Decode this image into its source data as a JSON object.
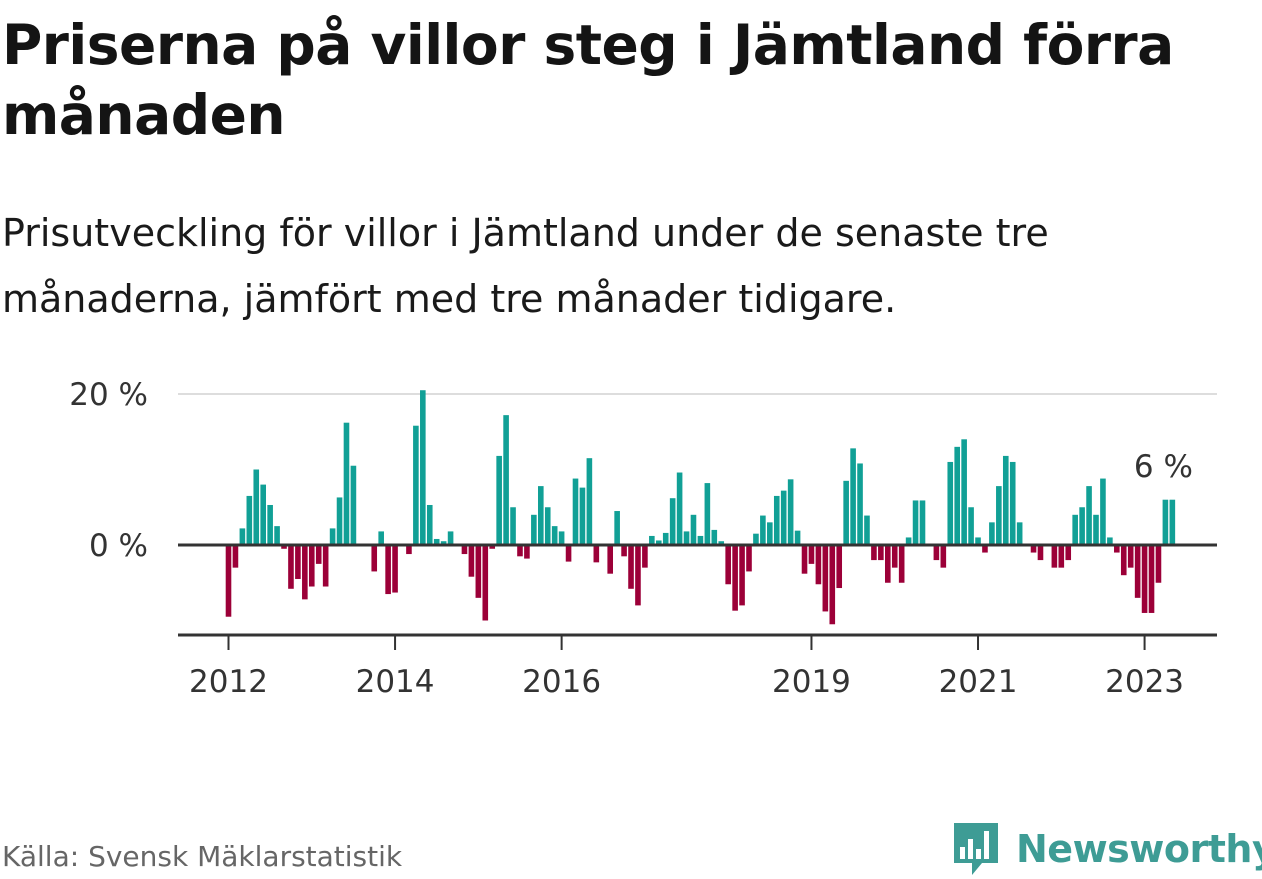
{
  "title": "Priserna på villor steg i Jämtland förra månaden",
  "subtitle": "Prisutveckling för villor i Jämtland under de senaste tre månaderna, jämfört med tre månader tidigare.",
  "source": "Källa: Svensk Mäklarstatistik",
  "brand": {
    "name": "Newsworthy",
    "icon": "newsworthy-logo-icon",
    "color": "#3e9c95"
  },
  "colors": {
    "positive": "#11a096",
    "negative": "#9c0038",
    "grid": "#dddddd",
    "axis": "#333333"
  },
  "chart_data": {
    "type": "bar",
    "title": "Priserna på villor steg i Jämtland förra månaden",
    "subtitle": "Prisutveckling för villor i Jämtland under de senaste tre månaderna, jämfört med tre månader tidigare.",
    "xlabel": "",
    "ylabel": "",
    "y_unit": "%",
    "ylim": [
      -12,
      20
    ],
    "y_ticks": [
      {
        "value": 0,
        "label": "0 %"
      },
      {
        "value": 20,
        "label": "20 %"
      }
    ],
    "x_ticks": [
      {
        "value": "2012-01",
        "label": "2012"
      },
      {
        "value": "2014-01",
        "label": "2014"
      },
      {
        "value": "2016-01",
        "label": "2016"
      },
      {
        "value": "2019-01",
        "label": "2019"
      },
      {
        "value": "2021-01",
        "label": "2021"
      },
      {
        "value": "2023-01",
        "label": "2023"
      }
    ],
    "grid": true,
    "annotation": {
      "text": "6 %",
      "at": "2023-04"
    },
    "x_start": "2012-01",
    "values": [
      -9.5,
      -3.0,
      2.2,
      6.5,
      10.0,
      8.0,
      5.3,
      2.5,
      -0.5,
      -5.8,
      -4.5,
      -7.2,
      -5.5,
      -2.5,
      -5.5,
      2.2,
      6.3,
      16.2,
      10.5,
      0,
      0,
      -3.5,
      1.8,
      -6.5,
      -6.3,
      0,
      -1.2,
      15.8,
      20.5,
      5.3,
      0.8,
      0.5,
      1.8,
      0,
      -1.2,
      -4.2,
      -7.0,
      -10.0,
      -0.5,
      11.8,
      17.2,
      5.0,
      -1.5,
      -1.8,
      4.0,
      7.8,
      5.0,
      2.5,
      1.8,
      -2.2,
      8.8,
      7.6,
      11.5,
      -2.3,
      0,
      -3.8,
      4.5,
      -1.5,
      -5.8,
      -8.0,
      -3.0,
      1.2,
      0.6,
      1.6,
      6.2,
      9.6,
      1.8,
      4.0,
      1.2,
      8.2,
      2.0,
      0.5,
      -5.2,
      -8.7,
      -8.0,
      -3.5,
      1.5,
      3.9,
      3.0,
      6.5,
      7.2,
      8.7,
      1.9,
      -3.8,
      -2.5,
      -5.2,
      -8.8,
      -10.5,
      -5.7,
      8.5,
      12.8,
      10.8,
      3.9,
      -2.0,
      -2.0,
      -5.0,
      -3.0,
      -5.0,
      1.0,
      5.9,
      5.9,
      0,
      -2.0,
      -3.0,
      11.0,
      13.0,
      14.0,
      5.0,
      1.0,
      -1.0,
      3.0,
      7.8,
      11.8,
      11.0,
      3.0,
      0,
      -1.0,
      -2.0,
      0,
      -3.0,
      -3.0,
      -2.0,
      4.0,
      5.0,
      7.8,
      4.0,
      8.8,
      1.0,
      -1.0,
      -4.0,
      -3.0,
      -7.0,
      -9.0,
      -9.0,
      -5.0,
      6.0,
      6.0
    ]
  }
}
